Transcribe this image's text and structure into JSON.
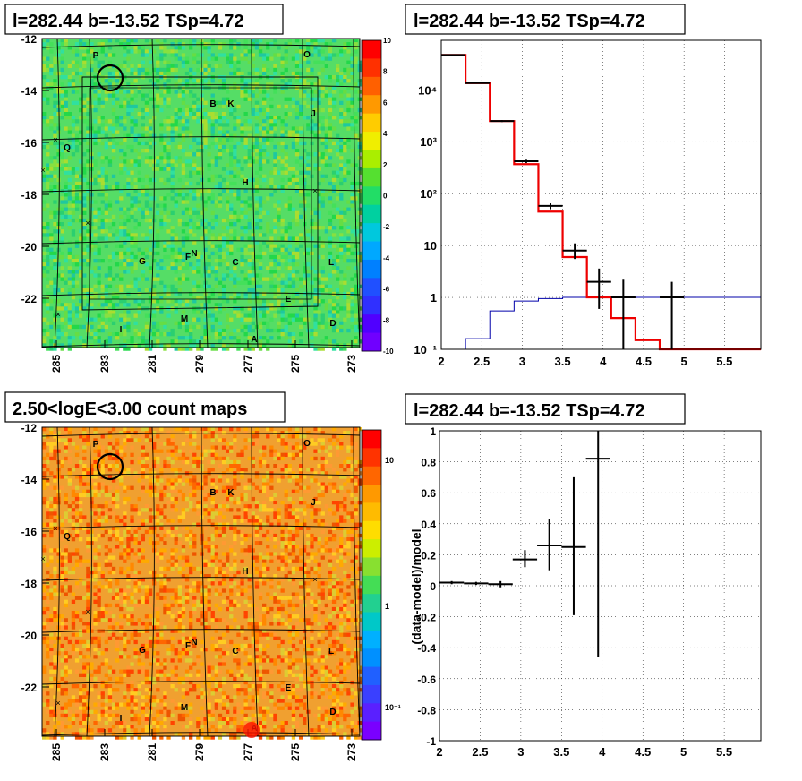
{
  "panels": {
    "top_left_title": "l=282.44 b=-13.52 TSp=4.72",
    "top_right_title": "l=282.44 b=-13.52 TSp=4.72",
    "bottom_left_title": "2.50<logE<3.00 count maps",
    "bottom_right_title": "l=282.44 b=-13.52 TSp=4.72"
  },
  "chart_data": [
    {
      "type": "heatmap",
      "title": "l=282.44 b=-13.52 TSp=4.72",
      "x_ticks": [
        "285",
        "283",
        "281",
        "279",
        "277",
        "275",
        "273"
      ],
      "y_ticks": [
        "-12",
        "-14",
        "-16",
        "-18",
        "-20",
        "-22"
      ],
      "colorbar_ticks": [
        "10",
        "8",
        "6",
        "4",
        "2",
        "0",
        "-2",
        "-4",
        "-6",
        "-8",
        "-10"
      ],
      "colorbar_range": [
        -10,
        10
      ],
      "source_labels": [
        "P",
        "O",
        "B",
        "K",
        "J",
        "Q",
        "H",
        "G",
        "F",
        "N",
        "C",
        "L",
        "E",
        "M",
        "I",
        "D",
        "A"
      ],
      "marker_symbol": "×",
      "colors": {
        "low": "#7a00ff",
        "mid": "#33e06b",
        "high": "#ff0000",
        "background": "#55dd66"
      }
    },
    {
      "type": "line",
      "title": "l=282.44 b=-13.52 TSp=4.72",
      "log_y": true,
      "x_ticks": [
        "2",
        "2.5",
        "3",
        "3.5",
        "4",
        "4.5",
        "5",
        "5.5"
      ],
      "y_ticks": [
        "10⁻¹",
        "1",
        "10",
        "10²",
        "10³",
        "10⁴"
      ],
      "xlim": [
        2,
        5.95
      ],
      "ylim": [
        0.1,
        90000
      ],
      "grid": true,
      "series": [
        {
          "role": "data",
          "color": "#000000",
          "x": [
            2.15,
            2.45,
            2.75,
            3.05,
            3.35,
            3.65,
            3.95,
            4.25,
            4.85
          ],
          "y": [
            47000,
            13500,
            2500,
            420,
            58,
            8.0,
            2.0,
            1.0,
            1.0
          ],
          "y_low": [
            46000,
            13200,
            2400,
            390,
            50,
            5.5,
            0.6,
            0.1,
            0.1
          ],
          "y_high": [
            48000,
            13800,
            2600,
            450,
            65,
            11,
            3.6,
            2.2,
            2.0
          ]
        },
        {
          "role": "model",
          "color": "#ee0000",
          "edges": [
            2.0,
            2.3,
            2.6,
            2.9,
            3.2,
            3.5,
            3.8,
            4.1,
            4.4,
            4.7,
            5.0,
            5.95
          ],
          "values": [
            47000,
            13500,
            2500,
            370,
            45,
            6.0,
            1.0,
            0.4,
            0.15,
            0.1,
            0.1
          ]
        },
        {
          "role": "background",
          "color": "#0000aa",
          "edges": [
            2.0,
            2.3,
            2.6,
            2.9,
            3.2,
            3.5,
            3.8,
            4.1,
            4.4,
            4.7,
            5.0,
            5.95
          ],
          "values": [
            0.1,
            0.16,
            0.55,
            0.85,
            0.95,
            1.0,
            1.0,
            1.0,
            1.0,
            1.0,
            1.0
          ]
        }
      ]
    },
    {
      "type": "heatmap",
      "title": "2.50<logE<3.00 count maps",
      "log_scale": true,
      "x_ticks": [
        "285",
        "283",
        "281",
        "279",
        "277",
        "275",
        "273"
      ],
      "y_ticks": [
        "-12",
        "-14",
        "-16",
        "-18",
        "-20",
        "-22"
      ],
      "colorbar_ticks": [
        "10",
        "1",
        "10⁻¹"
      ],
      "source_labels": [
        "P",
        "O",
        "B",
        "K",
        "J",
        "Q",
        "H",
        "G",
        "F",
        "N",
        "C",
        "L",
        "E",
        "M",
        "I",
        "D",
        "A"
      ],
      "marker_symbol": "×",
      "colors": {
        "low": "#7a00ff",
        "high": "#ff0000",
        "background": "#f0a030"
      }
    },
    {
      "type": "scatter",
      "title": "l=282.44 b=-13.52 TSp=4.72",
      "ylabel": "(data-model)/model",
      "x_ticks": [
        "2",
        "2.5",
        "3",
        "3.5",
        "4",
        "4.5",
        "5",
        "5.5"
      ],
      "y_ticks": [
        "1",
        "0.8",
        "0.6",
        "0.4",
        "0.2",
        "0",
        "-0.2",
        "-0.4",
        "-0.6",
        "-0.8",
        "-1"
      ],
      "xlim": [
        2,
        5.95
      ],
      "ylim": [
        -1,
        1
      ],
      "grid": true,
      "points": [
        {
          "x": 2.15,
          "xerr": 0.15,
          "y": 0.02,
          "y_low": 0.01,
          "y_high": 0.03
        },
        {
          "x": 2.45,
          "xerr": 0.15,
          "y": 0.015,
          "y_low": 0.005,
          "y_high": 0.025
        },
        {
          "x": 2.75,
          "xerr": 0.15,
          "y": 0.01,
          "y_low": -0.01,
          "y_high": 0.03
        },
        {
          "x": 3.05,
          "xerr": 0.15,
          "y": 0.17,
          "y_low": 0.12,
          "y_high": 0.23
        },
        {
          "x": 3.35,
          "xerr": 0.15,
          "y": 0.26,
          "y_low": 0.1,
          "y_high": 0.43
        },
        {
          "x": 3.65,
          "xerr": 0.15,
          "y": 0.25,
          "y_low": -0.19,
          "y_high": 0.7
        },
        {
          "x": 3.95,
          "xerr": 0.15,
          "y": 0.82,
          "y_low": -0.46,
          "y_high": 1.0
        }
      ]
    }
  ]
}
